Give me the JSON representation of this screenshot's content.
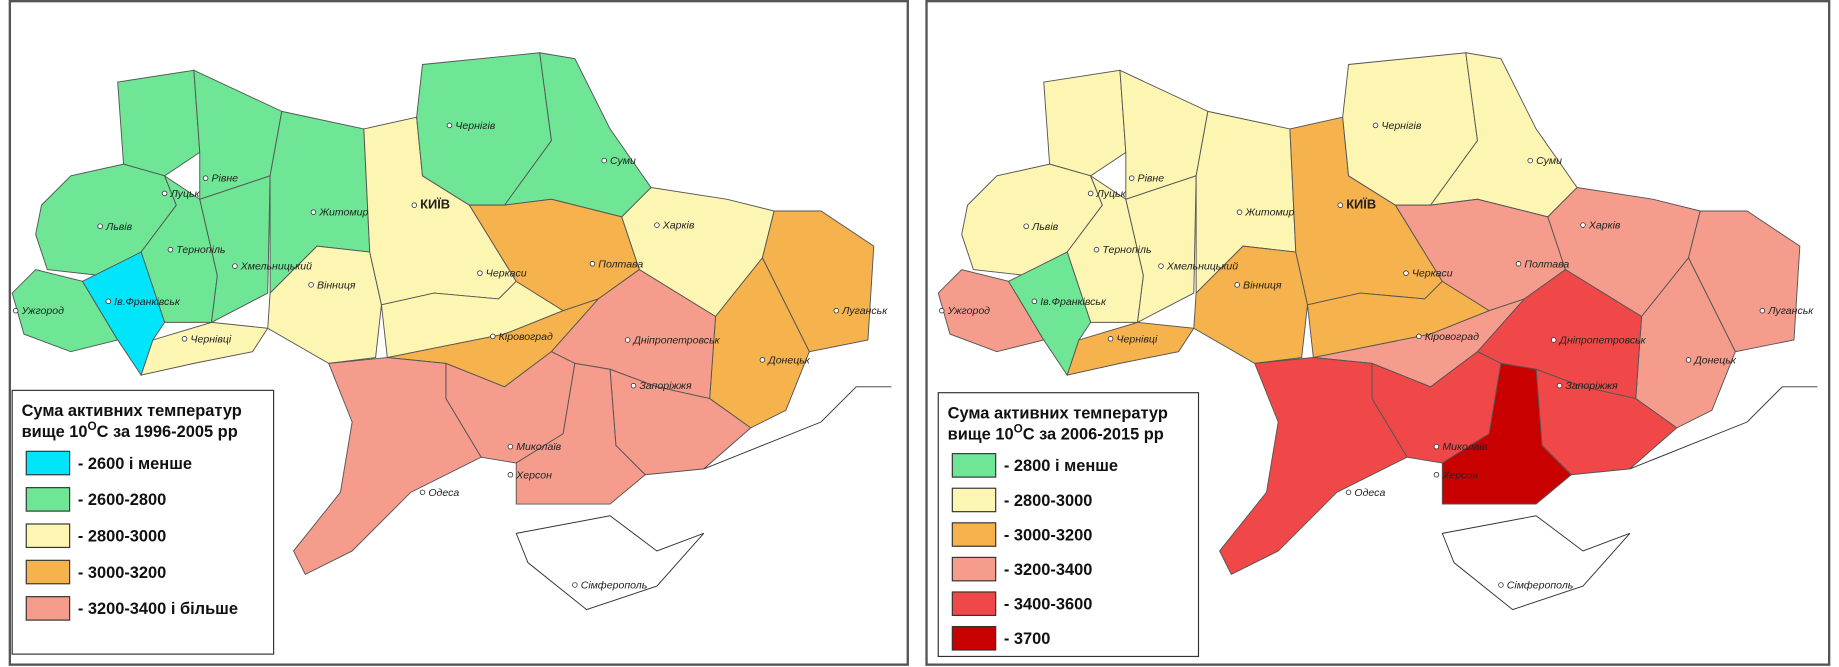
{
  "left": {
    "legend": {
      "title_line1": "Сума активних температур",
      "title_line2a": "вище 10",
      "title_sup": "O",
      "title_line2b": "С  за 1996-2005 рр",
      "items": [
        {
          "label": "- 2600 і менше",
          "color": "#00e5fa"
        },
        {
          "label": "- 2600-2800",
          "color": "#6ee695"
        },
        {
          "label": "- 2800-3000",
          "color": "#fdf5b2"
        },
        {
          "label": "- 3000-3200",
          "color": "#f6b24c"
        },
        {
          "label": "- 3200-3400 і більше",
          "color": "#f59c8c"
        }
      ]
    },
    "cities": [
      "Чернігів",
      "Суми",
      "Луцьк",
      "Рівне",
      "КИЇВ",
      "Житомир",
      "Львів",
      "Тернопіль",
      "Хмельницький",
      "Харків",
      "Полтава",
      "Черкаси",
      "Ужгород",
      "Ів.Франківськ",
      "Вінниця",
      "Луганськ",
      "Кіровоград",
      "Чернівці",
      "Дніпропетровськ",
      "Донецьк",
      "Запоріжжя",
      "Миколаїв",
      "Херсон",
      "Одеса",
      "Сімферополь"
    ]
  },
  "right": {
    "legend": {
      "title_line1": "Сума активних температур",
      "title_line2a": "вище 10",
      "title_sup": "O",
      "title_line2b": "С  за 2006-2015 рр",
      "items": [
        {
          "label": "- 2800 і менше",
          "color": "#6ee695"
        },
        {
          "label": "- 2800-3000",
          "color": "#fdf5b2"
        },
        {
          "label": "- 3000-3200",
          "color": "#f6b24c"
        },
        {
          "label": "- 3200-3400",
          "color": "#f59c8c"
        },
        {
          "label": "- 3400-3600",
          "color": "#f04848"
        },
        {
          "label": "- 3700",
          "color": "#c80000"
        }
      ]
    },
    "cities": [
      "Чернігів",
      "Суми",
      "Луцьк",
      "Рівне",
      "КИЇВ",
      "Житомир",
      "Львів",
      "Тернопіль",
      "Хмельницький",
      "Харків",
      "Полтава",
      "Черкаси",
      "Ужгород",
      "Ів.Франківськ",
      "Вінниця",
      "Луганськ",
      "Кіровоград",
      "Чернівці",
      "Дніпропетровськ",
      "Донецьк",
      "Запоріжжя",
      "Миколаїв",
      "Херсон",
      "Одеса",
      "Сімферополь"
    ]
  }
}
